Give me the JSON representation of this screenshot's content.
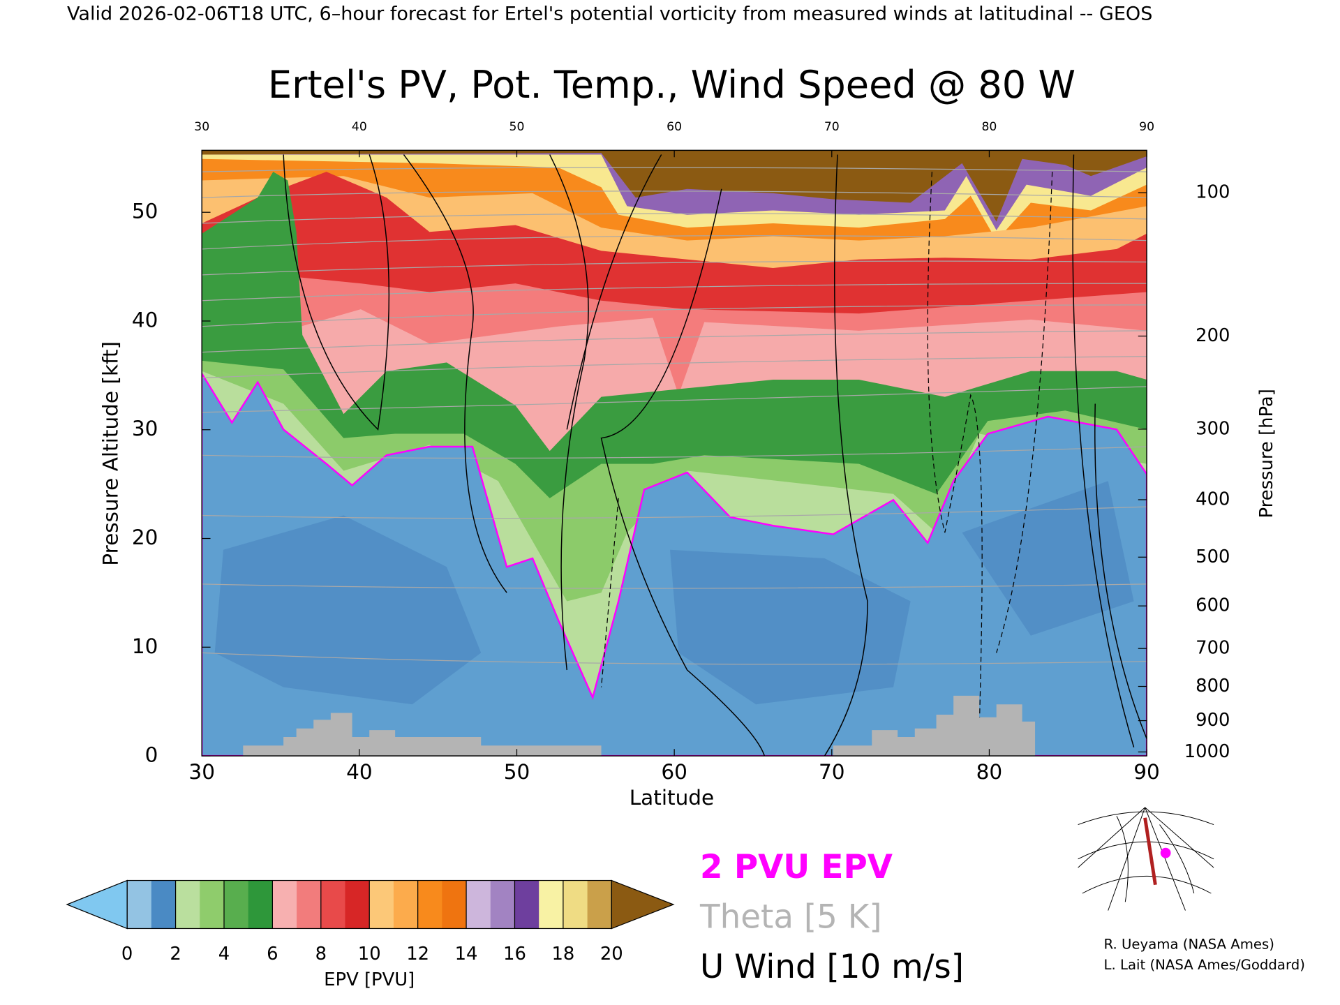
{
  "chart_data": {
    "type": "contour",
    "suptitle": "Valid 2026-02-06T18 UTC, 6–hour forecast for Ertel's potential vorticity from measured winds at latitudinal -- GEOS",
    "title": "Ertel's PV, Pot. Temp., Wind Speed @ 80 W",
    "xlabel": "Latitude",
    "ylabel": "Pressure Altitude [kft]",
    "y2label": "Pressure [hPa]",
    "xlim": [
      30,
      90
    ],
    "xticks": [
      30,
      40,
      50,
      60,
      70,
      80,
      90
    ],
    "ylim": [
      0,
      55.7
    ],
    "yticks": [
      0,
      10,
      20,
      30,
      40,
      50
    ],
    "y2ticks": [
      100,
      200,
      300,
      400,
      500,
      600,
      700,
      800,
      900,
      1000
    ],
    "colorbar": {
      "label": "EPV [PVU]",
      "lim": [
        0,
        20
      ],
      "ticks": [
        0,
        2,
        4,
        6,
        8,
        10,
        12,
        14,
        16,
        18,
        20
      ],
      "colors": [
        "#93c3e3",
        "#4a8ac4",
        "#badf9e",
        "#8fcc6c",
        "#58ae4e",
        "#2e973a",
        "#f7b0b0",
        "#f27c7c",
        "#e84a4a",
        "#d72626",
        "#fcc878",
        "#fcab4c",
        "#f88a1c",
        "#ef7410",
        "#cdb6dc",
        "#a283c2",
        "#6e3f9e",
        "#f8f2a4",
        "#efdc84",
        "#caa04a"
      ],
      "under_color": "#80c8f0",
      "over_color": "#8b5a12"
    },
    "legend": [
      {
        "name": "2 PVU EPV",
        "color": "#ff00ff"
      },
      {
        "name": "Theta [5 K]",
        "color": "#b4b4b4"
      },
      {
        "name": "U Wind [10 m/s]",
        "color": "#000000"
      }
    ],
    "credits": [
      "R. Ueyama (NASA Ames)",
      "L. Lait (NASA Ames/Goddard)"
    ]
  }
}
